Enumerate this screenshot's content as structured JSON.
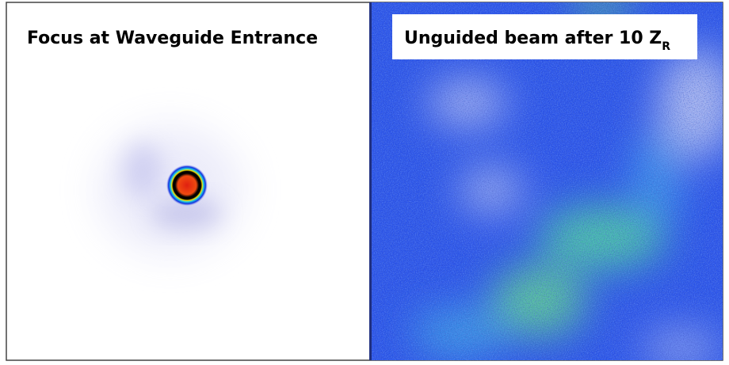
{
  "panels": [
    {
      "label": "Focus at Waveguide Entrance"
    },
    {
      "label": "Unguided beam after 10 Z",
      "subscript": "R"
    }
  ]
}
